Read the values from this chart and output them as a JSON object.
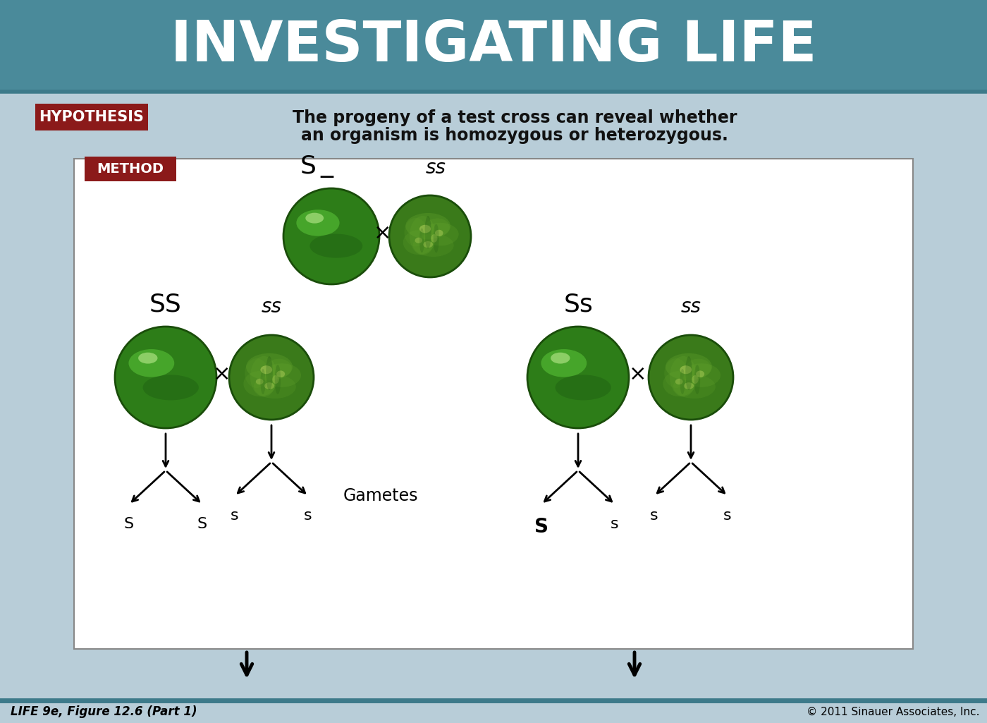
{
  "title": "INVESTIGATING LIFE",
  "title_bg": "#4a8a9a",
  "title_color": "#ffffff",
  "bg_color": "#b8cdd8",
  "hypothesis_label": "HYPOTHESIS",
  "hypothesis_label_bg": "#8b1a1a",
  "hypothesis_label_color": "#ffffff",
  "hypothesis_text_line1": "The progeny of a test cross can reveal whether",
  "hypothesis_text_line2": "an organism is homozygous or heterozygous.",
  "method_label": "METHOD",
  "method_label_bg": "#8b1a1a",
  "method_label_color": "#ffffff",
  "white_box_color": "#ffffff",
  "caption": "LIFE 9e, Figure 12.6 (Part 1)",
  "copyright": "© 2011 Sinauer Associates, Inc.",
  "dark_teal": "#3d7a8a",
  "border_color": "#888888"
}
